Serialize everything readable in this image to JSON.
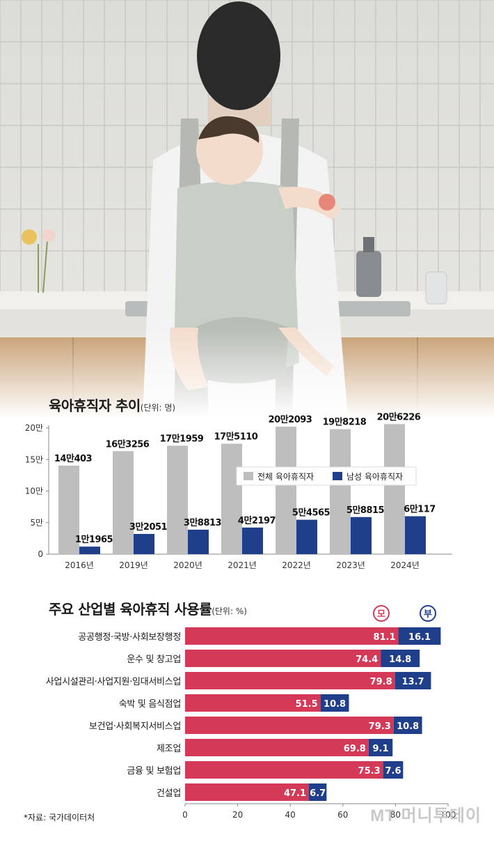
{
  "chart_data": [
    {
      "type": "bar",
      "title": "육아휴직자 추이",
      "unit_note": "(단위: 명)",
      "categories": [
        "2016년",
        "2019년",
        "2020년",
        "2021년",
        "2022년",
        "2023년",
        "2024년"
      ],
      "series": [
        {
          "name": "전체 육아휴직자",
          "color": "#bebebe",
          "values": [
            140403,
            163256,
            171959,
            175110,
            202093,
            198218,
            206226
          ],
          "labels": [
            "14만403",
            "16만3256",
            "17만1959",
            "17만5110",
            "20만2093",
            "19만8218",
            "20만6226"
          ]
        },
        {
          "name": "남성 육아휴직자",
          "color": "#1f3f8a",
          "values": [
            11965,
            32051,
            38813,
            42197,
            54565,
            58815,
            60117
          ],
          "labels": [
            "1만1965",
            "3만2051",
            "3만8813",
            "4만2197",
            "5만4565",
            "5만8815",
            "6만117"
          ]
        }
      ],
      "y_ticks": [
        "0",
        "5만",
        "10만",
        "15만",
        "20만"
      ],
      "ylim": [
        0,
        200000
      ],
      "legend_position": "top-right",
      "grid": false
    },
    {
      "type": "bar",
      "orientation": "horizontal",
      "stacked": true,
      "title": "주요 산업별 육아휴직 사용률",
      "unit_note": "(단위: %)",
      "categories": [
        "공공행정·국방·사회보장행정",
        "운수 및 창고업",
        "사업시설관리·사업지원·임대서비스업",
        "숙박 및 음식점업",
        "보건업·사회복지서비스업",
        "제조업",
        "금융 및 보험업",
        "건설업"
      ],
      "series": [
        {
          "name": "모",
          "color": "#d43a57",
          "values": [
            81.1,
            74.4,
            79.8,
            51.5,
            79.3,
            69.8,
            75.3,
            47.1
          ]
        },
        {
          "name": "부",
          "color": "#1f3f8a",
          "values": [
            16.1,
            14.8,
            13.7,
            10.8,
            10.8,
            9.1,
            7.6,
            6.7
          ]
        }
      ],
      "x_ticks": [
        "0",
        "20",
        "40",
        "60",
        "80",
        "100"
      ],
      "xlim": [
        0,
        100
      ],
      "legend_position": "top-right",
      "grid": false
    }
  ],
  "source_note": "*자료: 국가데이터처",
  "watermark": "MT 머니투데이"
}
